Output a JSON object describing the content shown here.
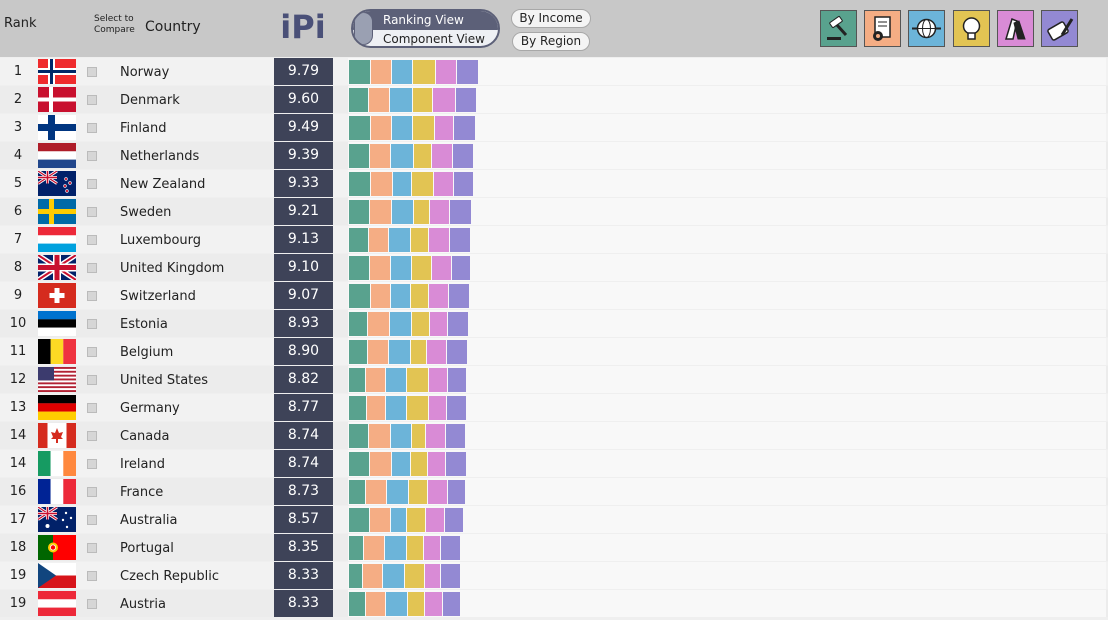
{
  "header": {
    "rank_label": "Rank",
    "select_label_line1": "Select to",
    "select_label_line2": "Compare",
    "country_label": "Country",
    "logo_text": "iPi",
    "view_toggle": {
      "ranking": "Ranking View",
      "component": "Component View",
      "selected": "Ranking View"
    },
    "by_income": "By Income",
    "by_region": "By Region"
  },
  "components": [
    {
      "icon": "gavel-icon",
      "color": "#59a28e"
    },
    {
      "icon": "document-gear-icon",
      "color": "#f5ad84"
    },
    {
      "icon": "globe-exchange-icon",
      "color": "#6cb4d9"
    },
    {
      "icon": "lightbulb-icon",
      "color": "#e2c453"
    },
    {
      "icon": "hands-icon",
      "color": "#d98bd6"
    },
    {
      "icon": "pen-scroll-icon",
      "color": "#9389d3"
    }
  ],
  "countries": [
    {
      "rank": "1",
      "name": "Norway",
      "score": "9.79",
      "segments": [
        1.69,
        1.7,
        1.66,
        1.74,
        1.7,
        1.74
      ]
    },
    {
      "rank": "2",
      "name": "Denmark",
      "score": "9.60",
      "segments": [
        1.58,
        1.67,
        1.74,
        1.63,
        1.74,
        1.69
      ]
    },
    {
      "rank": "3",
      "name": "Finland",
      "score": "9.49",
      "segments": [
        1.75,
        1.66,
        1.63,
        1.74,
        1.44,
        1.72
      ]
    },
    {
      "rank": "4",
      "name": "Netherlands",
      "score": "9.39",
      "segments": [
        1.65,
        1.67,
        1.75,
        1.42,
        1.65,
        1.69
      ]
    },
    {
      "rank": "5",
      "name": "New Zealand",
      "score": "9.33",
      "segments": [
        1.73,
        1.75,
        1.44,
        1.75,
        1.58,
        1.53
      ]
    },
    {
      "rank": "6",
      "name": "Sweden",
      "score": "9.21",
      "segments": [
        1.67,
        1.71,
        1.72,
        1.26,
        1.6,
        1.71
      ]
    },
    {
      "rank": "7",
      "name": "Luxembourg",
      "score": "9.13",
      "segments": [
        1.59,
        1.56,
        1.75,
        1.41,
        1.61,
        1.68
      ]
    },
    {
      "rank": "8",
      "name": "United Kingdom",
      "score": "9.10",
      "segments": [
        1.62,
        1.67,
        1.63,
        1.56,
        1.63,
        1.45
      ]
    },
    {
      "rank": "9",
      "name": "Switzerland",
      "score": "9.07",
      "segments": [
        1.69,
        1.58,
        1.62,
        1.41,
        1.56,
        1.67
      ]
    },
    {
      "rank": "10",
      "name": "Estonia",
      "score": "8.93",
      "segments": [
        1.46,
        1.72,
        1.75,
        1.42,
        1.42,
        1.62
      ]
    },
    {
      "rank": "11",
      "name": "Belgium",
      "score": "8.90",
      "segments": [
        1.46,
        1.68,
        1.75,
        1.2,
        1.58,
        1.7
      ]
    },
    {
      "rank": "12",
      "name": "United States",
      "score": "8.82",
      "segments": [
        1.33,
        1.6,
        1.64,
        1.73,
        1.47,
        1.51
      ]
    },
    {
      "rank": "13",
      "name": "Germany",
      "score": "8.77",
      "segments": [
        1.42,
        1.52,
        1.6,
        1.72,
        1.44,
        1.53
      ]
    },
    {
      "rank": "14",
      "name": "Canada",
      "score": "8.74",
      "segments": [
        1.57,
        1.74,
        1.64,
        1.08,
        1.6,
        1.56
      ]
    },
    {
      "rank": "14",
      "name": "Ireland",
      "score": "8.74",
      "segments": [
        1.66,
        1.72,
        1.51,
        1.31,
        1.42,
        1.6
      ]
    },
    {
      "rank": "16",
      "name": "France",
      "score": "8.73",
      "segments": [
        1.33,
        1.65,
        1.76,
        1.49,
        1.57,
        1.39
      ]
    },
    {
      "rank": "17",
      "name": "Australia",
      "score": "8.57",
      "segments": [
        1.61,
        1.7,
        1.25,
        1.45,
        1.52,
        1.47
      ]
    },
    {
      "rank": "18",
      "name": "Portugal",
      "score": "8.35",
      "segments": [
        1.19,
        1.61,
        1.76,
        1.32,
        1.35,
        1.58
      ]
    },
    {
      "rank": "19",
      "name": "Czech Republic",
      "score": "8.33",
      "segments": [
        1.09,
        1.54,
        1.75,
        1.58,
        1.29,
        1.51
      ]
    },
    {
      "rank": "19",
      "name": "Austria",
      "score": "8.33",
      "segments": [
        1.37,
        1.54,
        1.75,
        1.3,
        1.38,
        1.48
      ]
    }
  ]
}
